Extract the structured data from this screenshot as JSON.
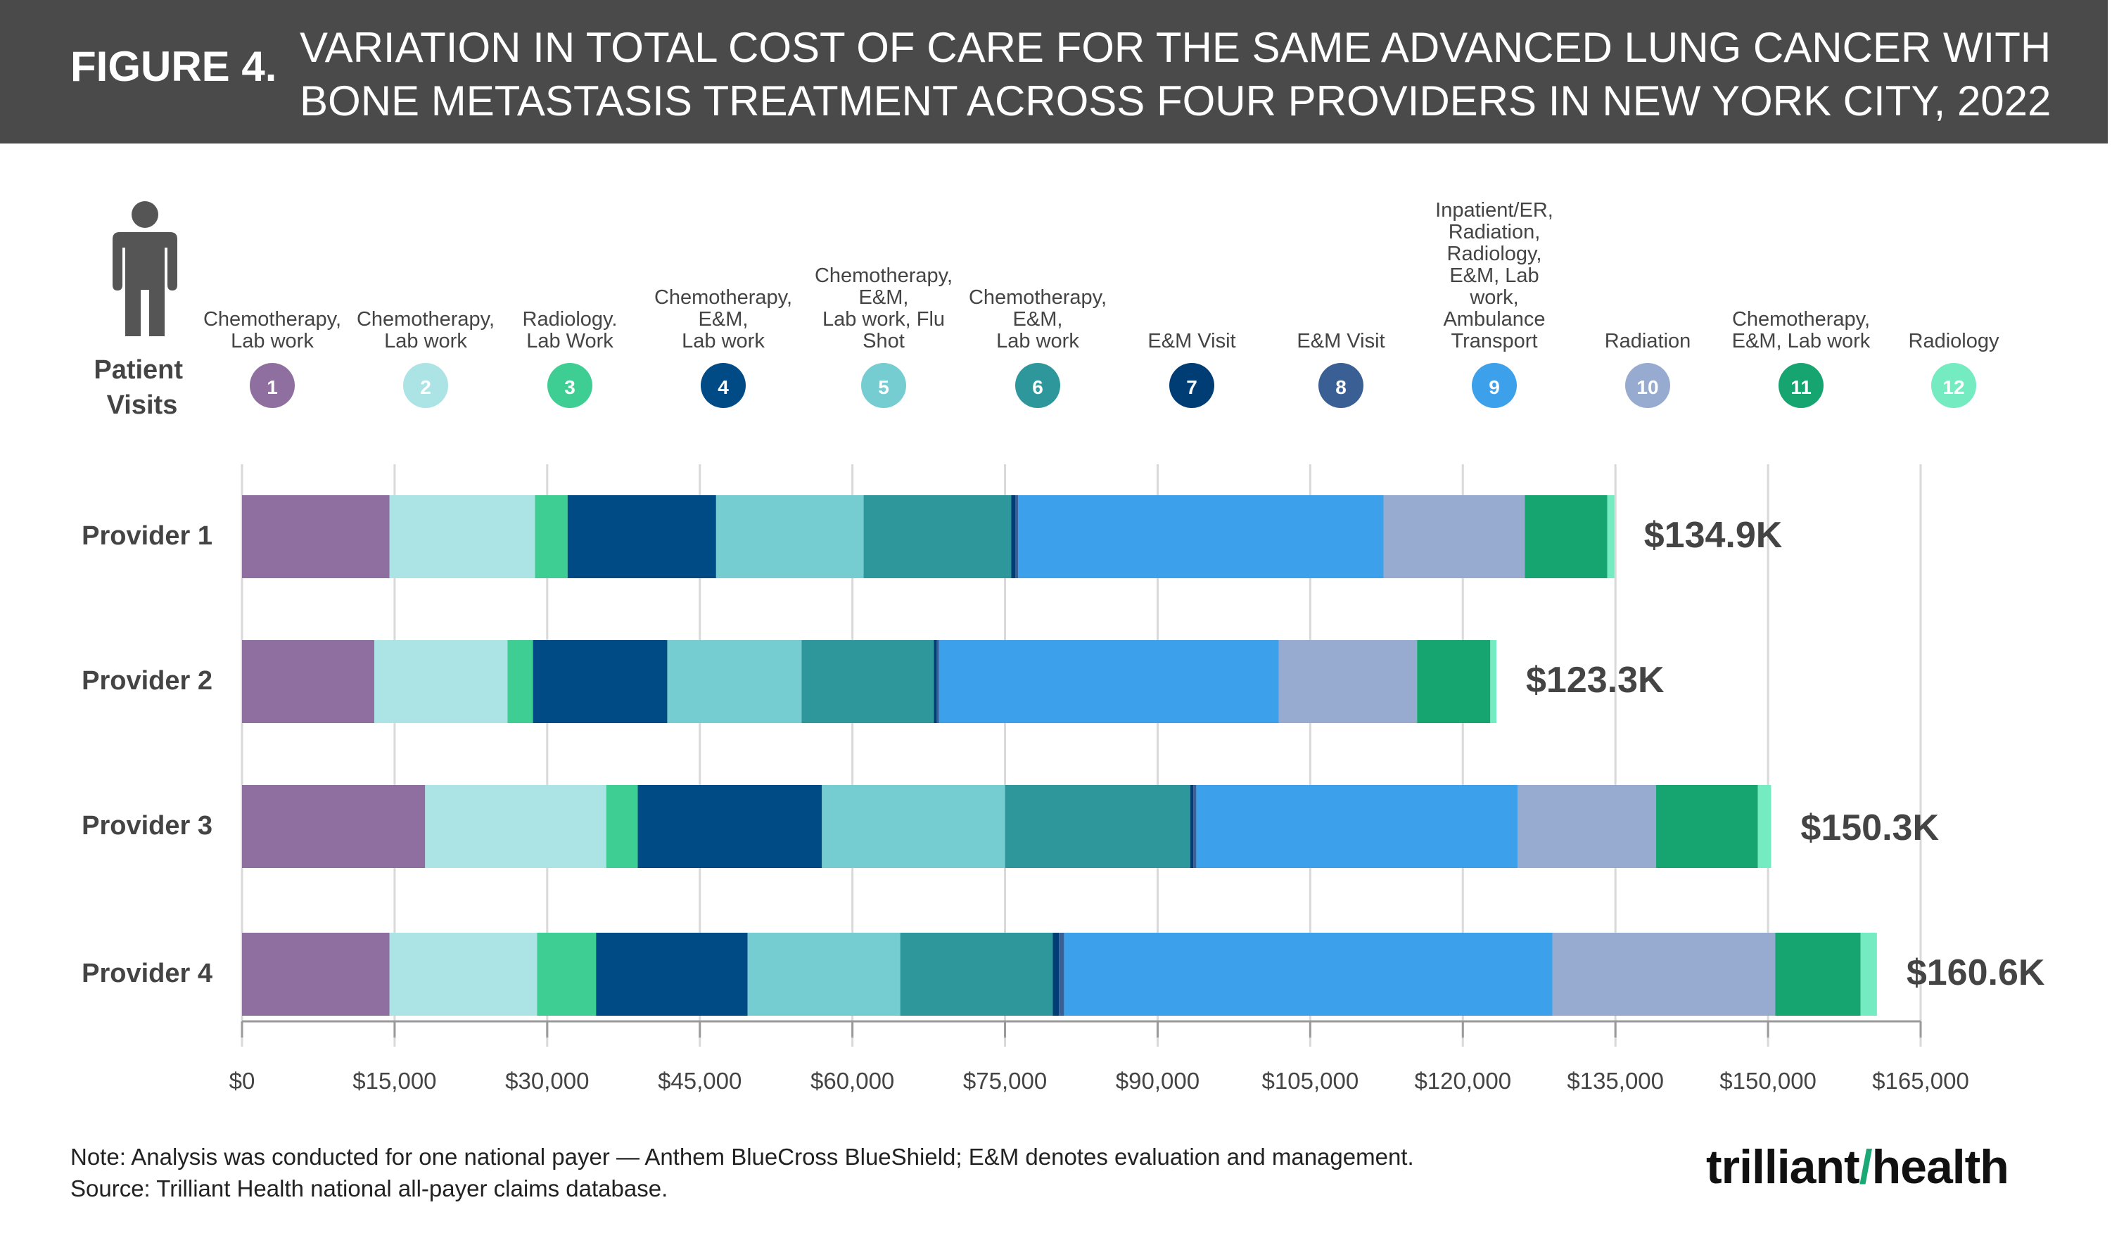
{
  "figure": {
    "label": "FIGURE 4.",
    "title": "VARIATION IN TOTAL COST OF CARE FOR THE SAME ADVANCED LUNG CANCER WITH BONE METASTASIS TREATMENT ACROSS FOUR PROVIDERS IN NEW YORK CITY, 2022"
  },
  "patient_visits_label": "Patient Visits",
  "visits": [
    {
      "num": "1",
      "label": "Chemotherapy, Lab work",
      "color": "#8e6f9f"
    },
    {
      "num": "2",
      "label": "Chemotherapy, Lab work",
      "color": "#ace4e6"
    },
    {
      "num": "3",
      "label": "Radiology. Lab Work",
      "color": "#3ecd93"
    },
    {
      "num": "4",
      "label": "Chemotherapy, E&M, Lab work",
      "color": "#004a85"
    },
    {
      "num": "5",
      "label": "Chemotherapy, E&M, Lab work, Flu Shot",
      "color": "#75cdd1"
    },
    {
      "num": "6",
      "label": "Chemotherapy, E&M, Lab work",
      "color": "#2e979b"
    },
    {
      "num": "7",
      "label": "E&M Visit",
      "color": "#003d75"
    },
    {
      "num": "8",
      "label": "E&M Visit",
      "color": "#3a5f94"
    },
    {
      "num": "9",
      "label": "Inpatient/ER, Radiation, Radiology, E&M, Lab work, Ambulance Transport",
      "color": "#3ca1ea"
    },
    {
      "num": "10",
      "label": "Radiation",
      "color": "#96abcf"
    },
    {
      "num": "11",
      "label": "Chemotherapy, E&M, Lab work",
      "color": "#16a570"
    },
    {
      "num": "12",
      "label": "Radiology",
      "color": "#74ebc0"
    }
  ],
  "chart_data": {
    "type": "bar",
    "orientation": "horizontal",
    "stacked": true,
    "categories": [
      "Provider 1",
      "Provider 2",
      "Provider 3",
      "Provider 4"
    ],
    "series": [
      {
        "name": "1",
        "values": [
          14500,
          13000,
          18000,
          14500
        ]
      },
      {
        "name": "2",
        "values": [
          14300,
          13100,
          17800,
          14500
        ]
      },
      {
        "name": "3",
        "values": [
          3200,
          2500,
          3100,
          5800
        ]
      },
      {
        "name": "4",
        "values": [
          14600,
          13200,
          18100,
          14900
        ]
      },
      {
        "name": "5",
        "values": [
          14500,
          13200,
          18000,
          15000
        ]
      },
      {
        "name": "6",
        "values": [
          14500,
          13000,
          18200,
          15000
        ]
      },
      {
        "name": "7",
        "values": [
          400,
          300,
          300,
          600
        ]
      },
      {
        "name": "8",
        "values": [
          300,
          200,
          300,
          500
        ]
      },
      {
        "name": "9",
        "values": [
          35900,
          33400,
          31600,
          48000
        ]
      },
      {
        "name": "10",
        "values": [
          13900,
          13600,
          13600,
          21900
        ]
      },
      {
        "name": "11",
        "values": [
          8100,
          7200,
          10000,
          8400
        ]
      },
      {
        "name": "12",
        "values": [
          700,
          600,
          1300,
          1600
        ]
      }
    ],
    "totals": [
      "$134.9K",
      "$123.3K",
      "$150.3K",
      "$160.6K"
    ],
    "xlim": [
      0,
      165000
    ],
    "xticks": [
      0,
      15000,
      30000,
      45000,
      60000,
      75000,
      90000,
      105000,
      120000,
      135000,
      150000,
      165000
    ],
    "xtick_labels": [
      "$0",
      "$15,000",
      "$30,000",
      "$45,000",
      "$60,000",
      "$75,000",
      "$90,000",
      "$105,000",
      "$120,000",
      "$135,000",
      "$150,000",
      "$165,000"
    ],
    "grid": true
  },
  "note": {
    "line1": "Note: Analysis was conducted for one national payer — Anthem BlueCross BlueShield; E&M denotes evaluation and management.",
    "line2": "Source: Trilliant Health national all-payer claims database."
  },
  "logo": {
    "part1": "trilliant",
    "part2": "health"
  }
}
